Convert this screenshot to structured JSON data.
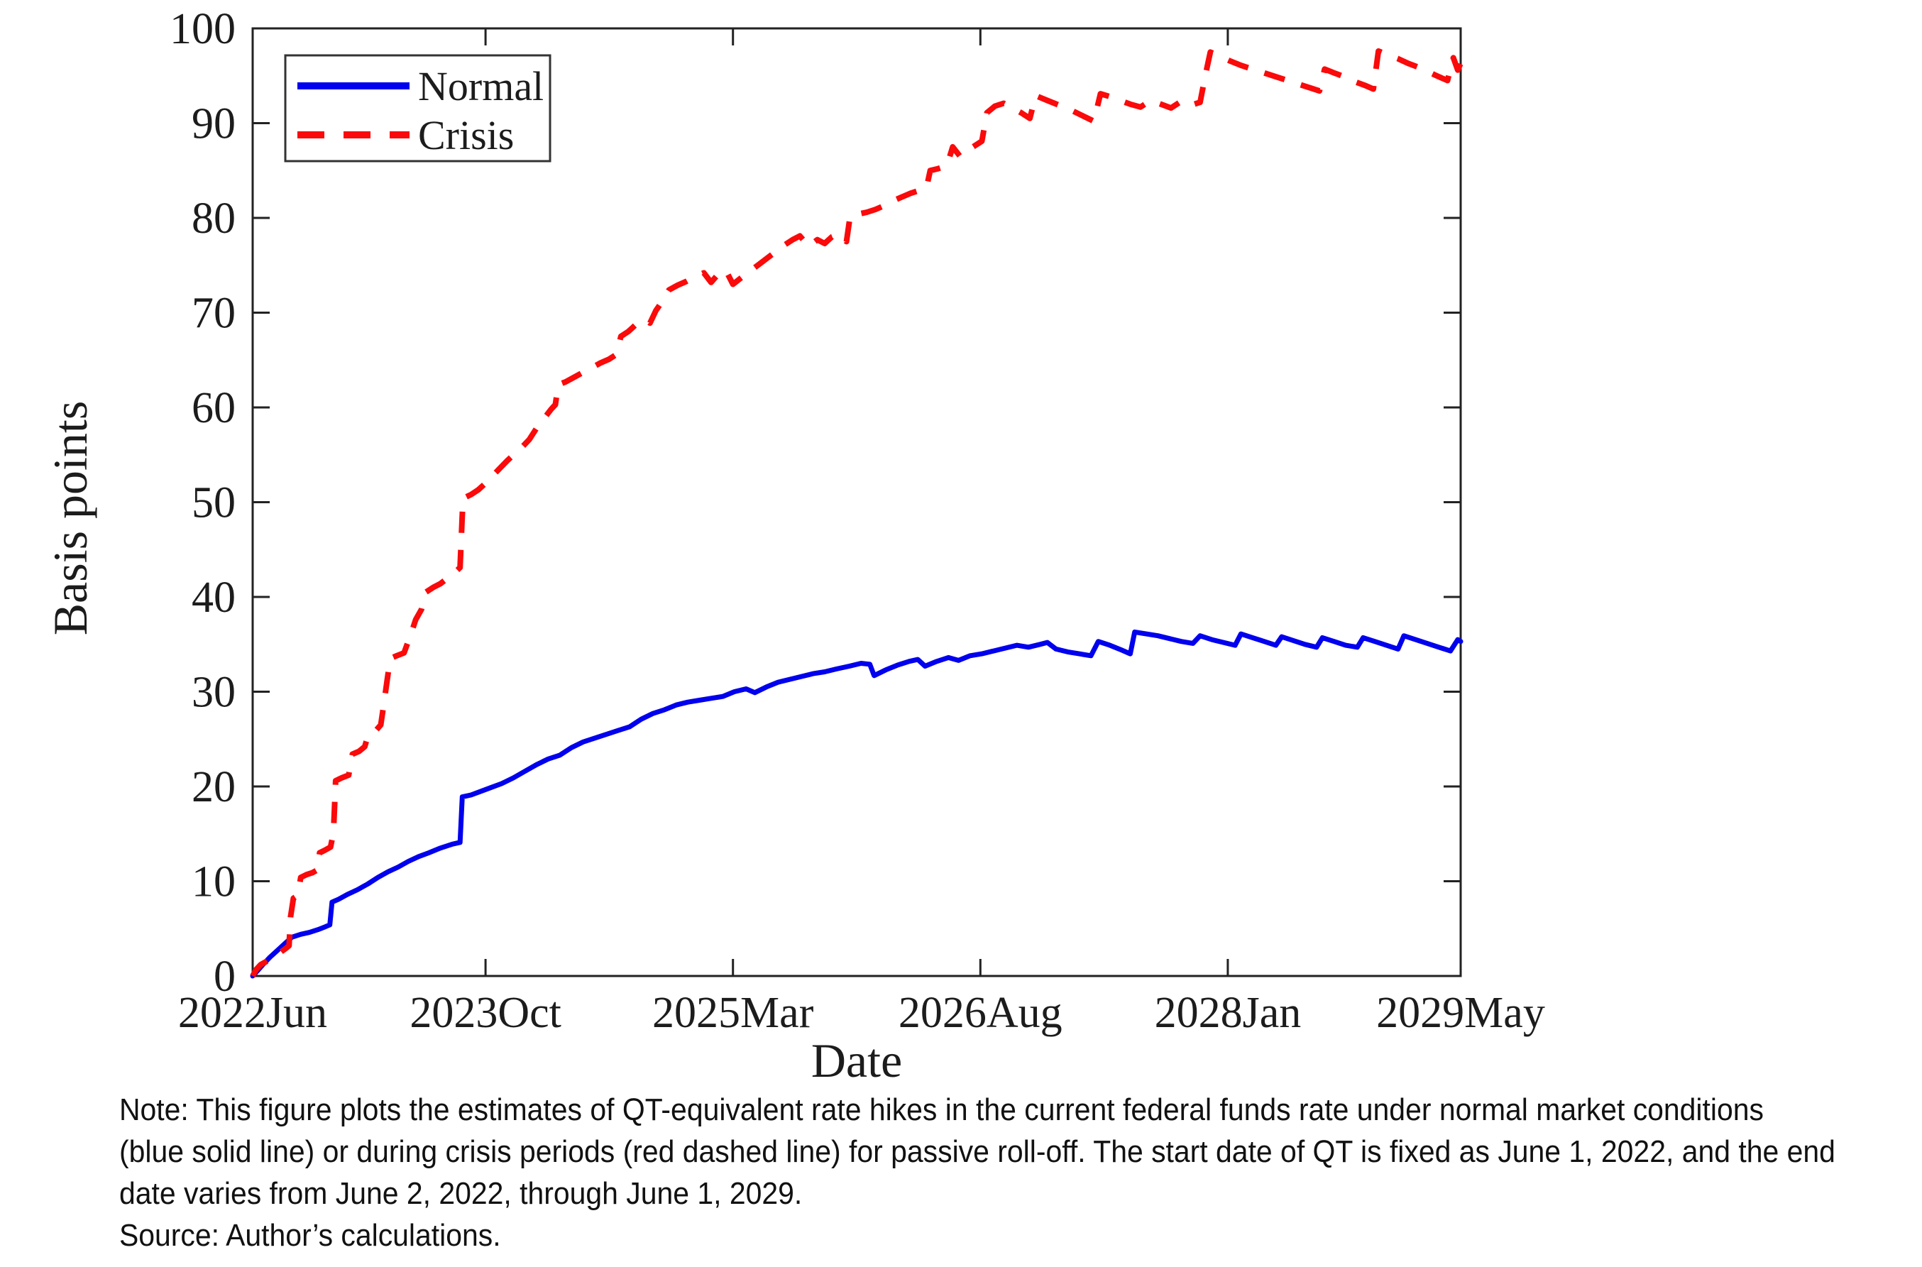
{
  "note": {
    "lines": [
      "Note:  This figure plots the estimates of QT-equivalent rate hikes in the current federal funds rate under normal market conditions",
      "(blue solid line) or during crisis periods (red dashed line) for passive roll-off. The start date of QT is fixed as June 1, 2022, and the end",
      "date varies from June 2, 2022, through June 1, 2029.",
      "Source: Author’s calculations."
    ]
  },
  "chart_data": {
    "type": "line",
    "title": "",
    "xlabel": "Date",
    "ylabel": "Basis points",
    "x_unit": "months since 2022-06-01",
    "x_domain": [
      0,
      83
    ],
    "ylim": [
      0,
      100
    ],
    "grid": false,
    "legend_position": "top-left",
    "axis_color": "#222222",
    "y_ticks": [
      0,
      10,
      20,
      30,
      40,
      50,
      60,
      70,
      80,
      90,
      100
    ],
    "x_ticks": [
      {
        "m": 0,
        "label": "2022Jun"
      },
      {
        "m": 16,
        "label": "2023Oct"
      },
      {
        "m": 33,
        "label": "2025Mar"
      },
      {
        "m": 50,
        "label": "2026Aug"
      },
      {
        "m": 67,
        "label": "2028Jan"
      },
      {
        "m": 83,
        "label": "2029May"
      }
    ],
    "series": [
      {
        "name": "Normal",
        "color": "#0000ee",
        "style": "solid",
        "points": [
          [
            0,
            0
          ],
          [
            0.3,
            0.5
          ],
          [
            0.7,
            1.2
          ],
          [
            1.2,
            2.0
          ],
          [
            1.7,
            2.7
          ],
          [
            2.2,
            3.4
          ],
          [
            2.7,
            4.1
          ],
          [
            3.3,
            4.4
          ],
          [
            3.9,
            4.6
          ],
          [
            4.5,
            4.9
          ],
          [
            5.0,
            5.2
          ],
          [
            5.3,
            5.4
          ],
          [
            5.45,
            7.8
          ],
          [
            5.9,
            8.1
          ],
          [
            6.5,
            8.6
          ],
          [
            7.2,
            9.1
          ],
          [
            7.9,
            9.7
          ],
          [
            8.6,
            10.4
          ],
          [
            9.3,
            11.0
          ],
          [
            10.0,
            11.5
          ],
          [
            10.7,
            12.1
          ],
          [
            11.4,
            12.6
          ],
          [
            12.1,
            13.0
          ],
          [
            12.9,
            13.5
          ],
          [
            13.7,
            13.9
          ],
          [
            14.25,
            14.1
          ],
          [
            14.4,
            18.9
          ],
          [
            15.0,
            19.1
          ],
          [
            15.7,
            19.5
          ],
          [
            16.4,
            19.9
          ],
          [
            17.1,
            20.3
          ],
          [
            17.9,
            20.9
          ],
          [
            18.7,
            21.6
          ],
          [
            19.5,
            22.3
          ],
          [
            20.3,
            22.9
          ],
          [
            21.1,
            23.3
          ],
          [
            21.9,
            24.1
          ],
          [
            22.7,
            24.7
          ],
          [
            23.5,
            25.1
          ],
          [
            24.3,
            25.5
          ],
          [
            25.1,
            25.9
          ],
          [
            25.9,
            26.3
          ],
          [
            26.7,
            27.1
          ],
          [
            27.5,
            27.7
          ],
          [
            28.3,
            28.1
          ],
          [
            29.1,
            28.6
          ],
          [
            29.9,
            28.9
          ],
          [
            30.7,
            29.1
          ],
          [
            31.5,
            29.3
          ],
          [
            32.3,
            29.5
          ],
          [
            33.1,
            30.0
          ],
          [
            33.9,
            30.3
          ],
          [
            34.5,
            29.9
          ],
          [
            35.3,
            30.5
          ],
          [
            36.1,
            31.0
          ],
          [
            36.9,
            31.3
          ],
          [
            37.7,
            31.6
          ],
          [
            38.5,
            31.9
          ],
          [
            39.3,
            32.1
          ],
          [
            40.1,
            32.4
          ],
          [
            41.0,
            32.7
          ],
          [
            41.8,
            33.0
          ],
          [
            42.4,
            32.9
          ],
          [
            42.7,
            31.7
          ],
          [
            43.5,
            32.3
          ],
          [
            44.3,
            32.8
          ],
          [
            45.1,
            33.2
          ],
          [
            45.7,
            33.4
          ],
          [
            46.2,
            32.7
          ],
          [
            47.0,
            33.2
          ],
          [
            47.8,
            33.6
          ],
          [
            48.5,
            33.3
          ],
          [
            49.3,
            33.8
          ],
          [
            50.1,
            34.0
          ],
          [
            50.9,
            34.3
          ],
          [
            51.7,
            34.6
          ],
          [
            52.5,
            34.9
          ],
          [
            53.3,
            34.7
          ],
          [
            54.1,
            35.0
          ],
          [
            54.6,
            35.2
          ],
          [
            55.2,
            34.5
          ],
          [
            56.0,
            34.2
          ],
          [
            56.8,
            34.0
          ],
          [
            57.6,
            33.8
          ],
          [
            58.1,
            35.3
          ],
          [
            58.9,
            34.9
          ],
          [
            59.7,
            34.4
          ],
          [
            60.3,
            34.0
          ],
          [
            60.6,
            36.3
          ],
          [
            61.4,
            36.1
          ],
          [
            62.2,
            35.9
          ],
          [
            63.0,
            35.6
          ],
          [
            63.8,
            35.3
          ],
          [
            64.6,
            35.1
          ],
          [
            65.1,
            35.9
          ],
          [
            65.9,
            35.5
          ],
          [
            66.7,
            35.2
          ],
          [
            67.5,
            34.9
          ],
          [
            67.9,
            36.1
          ],
          [
            68.7,
            35.7
          ],
          [
            69.5,
            35.3
          ],
          [
            70.3,
            34.9
          ],
          [
            70.7,
            35.8
          ],
          [
            71.5,
            35.4
          ],
          [
            72.3,
            35.0
          ],
          [
            73.1,
            34.7
          ],
          [
            73.5,
            35.7
          ],
          [
            74.3,
            35.3
          ],
          [
            75.1,
            34.9
          ],
          [
            75.9,
            34.7
          ],
          [
            76.3,
            35.7
          ],
          [
            77.1,
            35.3
          ],
          [
            77.9,
            34.9
          ],
          [
            78.7,
            34.5
          ],
          [
            79.1,
            35.9
          ],
          [
            79.9,
            35.5
          ],
          [
            80.7,
            35.1
          ],
          [
            81.5,
            34.7
          ],
          [
            82.3,
            34.3
          ],
          [
            82.8,
            35.5
          ],
          [
            83,
            35.3
          ]
        ]
      },
      {
        "name": "Crisis",
        "color": "#fa0a0a",
        "style": "dashed",
        "points": [
          [
            0,
            0
          ],
          [
            0.25,
            0.7
          ],
          [
            0.55,
            1.2
          ],
          [
            0.9,
            1.5
          ],
          [
            1.2,
            1.8
          ],
          [
            1.6,
            2.1
          ],
          [
            2.0,
            2.6
          ],
          [
            2.35,
            3.0
          ],
          [
            2.5,
            3.2
          ],
          [
            2.6,
            6.2
          ],
          [
            2.8,
            8.2
          ],
          [
            3.1,
            8.5
          ],
          [
            3.3,
            10.4
          ],
          [
            3.7,
            10.7
          ],
          [
            4.1,
            10.9
          ],
          [
            4.45,
            11.2
          ],
          [
            4.6,
            13.0
          ],
          [
            5.0,
            13.3
          ],
          [
            5.35,
            13.6
          ],
          [
            5.55,
            15.1
          ],
          [
            5.7,
            20.6
          ],
          [
            6.1,
            20.9
          ],
          [
            6.6,
            21.2
          ],
          [
            6.85,
            23.4
          ],
          [
            7.3,
            23.7
          ],
          [
            7.7,
            24.2
          ],
          [
            7.95,
            25.5
          ],
          [
            8.4,
            25.8
          ],
          [
            8.8,
            26.5
          ],
          [
            9.0,
            28.6
          ],
          [
            9.2,
            30.8
          ],
          [
            9.45,
            33.5
          ],
          [
            9.9,
            33.8
          ],
          [
            10.4,
            34.1
          ],
          [
            10.9,
            36.2
          ],
          [
            11.2,
            37.6
          ],
          [
            11.6,
            38.7
          ],
          [
            11.9,
            40.5
          ],
          [
            12.4,
            41.0
          ],
          [
            12.9,
            41.4
          ],
          [
            13.4,
            42.0
          ],
          [
            13.9,
            42.6
          ],
          [
            14.25,
            43.1
          ],
          [
            14.45,
            50.4
          ],
          [
            15.0,
            50.8
          ],
          [
            15.5,
            51.3
          ],
          [
            16.0,
            52.0
          ],
          [
            16.5,
            52.8
          ],
          [
            17.0,
            53.6
          ],
          [
            17.5,
            54.4
          ],
          [
            18.0,
            55.1
          ],
          [
            18.5,
            55.8
          ],
          [
            19.0,
            56.6
          ],
          [
            19.5,
            57.8
          ],
          [
            20.0,
            58.8
          ],
          [
            20.5,
            59.8
          ],
          [
            20.8,
            60.3
          ],
          [
            21.0,
            62.4
          ],
          [
            21.5,
            62.7
          ],
          [
            22.1,
            63.2
          ],
          [
            22.7,
            63.7
          ],
          [
            23.3,
            64.2
          ],
          [
            23.9,
            64.7
          ],
          [
            24.5,
            65.1
          ],
          [
            25.0,
            65.6
          ],
          [
            25.3,
            67.5
          ],
          [
            25.8,
            68.0
          ],
          [
            26.3,
            68.7
          ],
          [
            26.9,
            69.3
          ],
          [
            27.3,
            68.9
          ],
          [
            27.7,
            70.2
          ],
          [
            28.1,
            71.1
          ],
          [
            28.6,
            72.4
          ],
          [
            29.2,
            72.9
          ],
          [
            29.8,
            73.3
          ],
          [
            30.4,
            73.8
          ],
          [
            31.0,
            74.2
          ],
          [
            31.5,
            73.2
          ],
          [
            32.0,
            74.1
          ],
          [
            32.5,
            74.5
          ],
          [
            33.0,
            73.0
          ],
          [
            33.5,
            73.6
          ],
          [
            34.1,
            74.3
          ],
          [
            34.7,
            75.0
          ],
          [
            35.3,
            75.7
          ],
          [
            35.9,
            76.4
          ],
          [
            36.5,
            77.1
          ],
          [
            37.1,
            77.7
          ],
          [
            37.6,
            78.1
          ],
          [
            38.2,
            77.0
          ],
          [
            38.8,
            77.7
          ],
          [
            39.3,
            77.3
          ],
          [
            39.8,
            78.0
          ],
          [
            40.3,
            78.3
          ],
          [
            40.8,
            77.5
          ],
          [
            41.05,
            80.2
          ],
          [
            41.6,
            80.4
          ],
          [
            42.2,
            80.6
          ],
          [
            42.8,
            80.9
          ],
          [
            43.4,
            81.3
          ],
          [
            44.0,
            81.8
          ],
          [
            44.6,
            82.2
          ],
          [
            45.2,
            82.6
          ],
          [
            45.8,
            82.9
          ],
          [
            46.3,
            83.2
          ],
          [
            46.55,
            85.0
          ],
          [
            47.1,
            85.2
          ],
          [
            47.7,
            85.5
          ],
          [
            48.1,
            87.5
          ],
          [
            48.6,
            86.5
          ],
          [
            49.2,
            87.2
          ],
          [
            49.8,
            87.8
          ],
          [
            50.1,
            88.1
          ],
          [
            50.45,
            91.1
          ],
          [
            51.0,
            91.8
          ],
          [
            51.6,
            92.1
          ],
          [
            52.2,
            91.6
          ],
          [
            52.8,
            91.1
          ],
          [
            53.4,
            90.5
          ],
          [
            53.8,
            92.9
          ],
          [
            54.6,
            92.4
          ],
          [
            55.4,
            91.9
          ],
          [
            56.2,
            91.4
          ],
          [
            57.0,
            90.8
          ],
          [
            57.8,
            90.2
          ],
          [
            58.25,
            93.1
          ],
          [
            58.9,
            92.8
          ],
          [
            59.6,
            92.4
          ],
          [
            60.3,
            92.0
          ],
          [
            61.0,
            91.7
          ],
          [
            61.7,
            92.4
          ],
          [
            62.4,
            92.0
          ],
          [
            63.1,
            91.6
          ],
          [
            63.8,
            92.3
          ],
          [
            64.5,
            91.9
          ],
          [
            65.1,
            92.2
          ],
          [
            65.45,
            95.0
          ],
          [
            65.8,
            97.5
          ],
          [
            66.4,
            97.1
          ],
          [
            67.1,
            96.6
          ],
          [
            67.9,
            96.1
          ],
          [
            68.7,
            95.7
          ],
          [
            69.5,
            95.3
          ],
          [
            70.3,
            94.9
          ],
          [
            71.1,
            94.5
          ],
          [
            71.9,
            94.1
          ],
          [
            72.7,
            93.7
          ],
          [
            73.3,
            93.4
          ],
          [
            73.65,
            95.7
          ],
          [
            74.3,
            95.3
          ],
          [
            75.0,
            94.9
          ],
          [
            75.7,
            94.4
          ],
          [
            76.4,
            94.0
          ],
          [
            77.0,
            93.6
          ],
          [
            77.35,
            97.6
          ],
          [
            78.0,
            97.2
          ],
          [
            78.7,
            96.8
          ],
          [
            79.4,
            96.3
          ],
          [
            80.1,
            95.9
          ],
          [
            80.8,
            95.4
          ],
          [
            81.5,
            94.9
          ],
          [
            82.1,
            94.5
          ],
          [
            82.5,
            96.9
          ],
          [
            82.8,
            95.6
          ],
          [
            83,
            96.3
          ]
        ]
      }
    ]
  }
}
